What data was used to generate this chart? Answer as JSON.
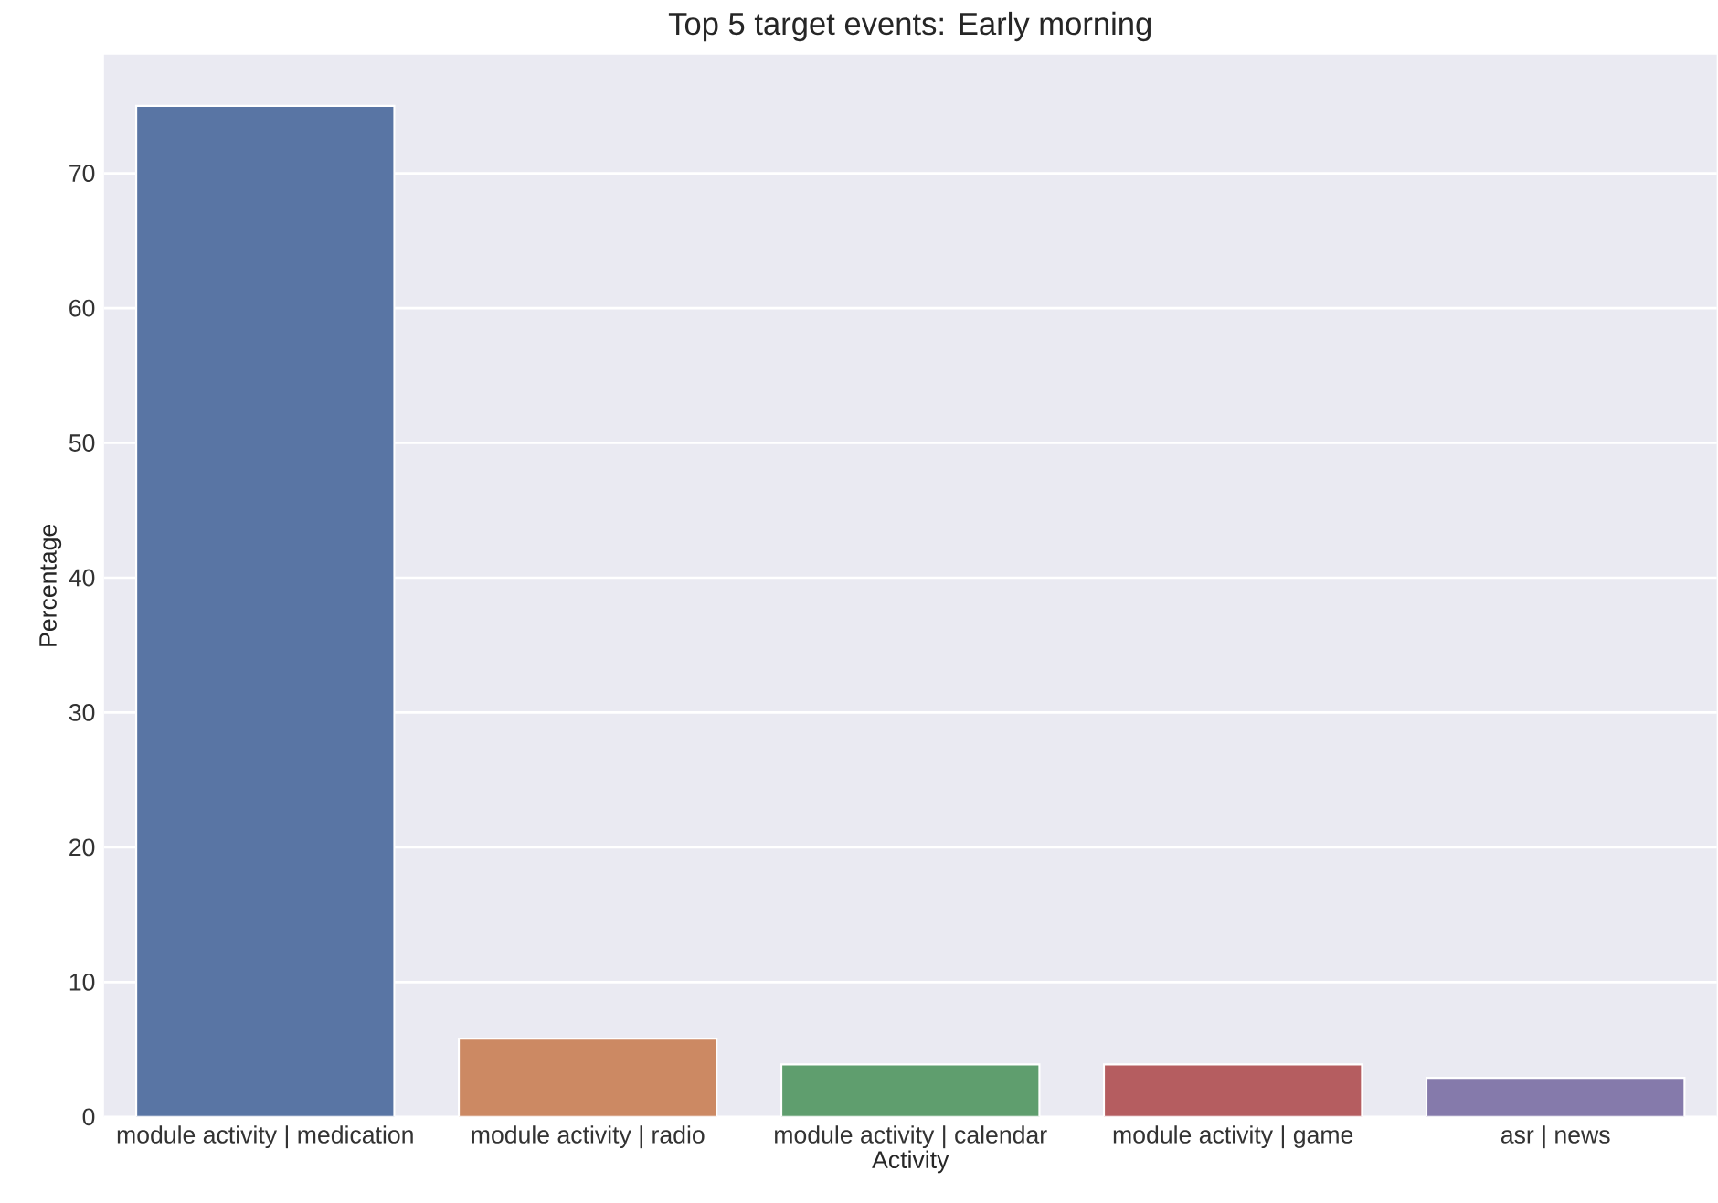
{
  "chart_data": {
    "type": "bar",
    "title": "Top 5 target events: Early morning",
    "xlabel": "Activity",
    "ylabel": "Percentage",
    "categories": [
      "module activity | medication",
      "module activity | radio",
      "module activity | calendar",
      "module activity | game",
      "asr | news"
    ],
    "values": [
      75.0,
      5.8,
      3.9,
      3.9,
      2.9
    ],
    "colors": [
      "#5975a4",
      "#cc8963",
      "#5f9e6e",
      "#b55d60",
      "#857aab"
    ],
    "ylim": [
      0,
      78.8
    ],
    "yticks": [
      0,
      10,
      20,
      30,
      40,
      50,
      60,
      70
    ],
    "grid": "y"
  }
}
